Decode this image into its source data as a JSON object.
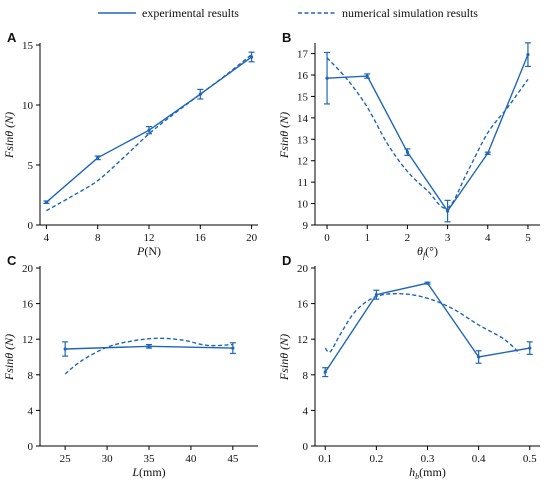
{
  "colors": {
    "series": "#1f66b8",
    "axis": "#000000"
  },
  "legend": {
    "placement": "top-center",
    "items": [
      {
        "label": "experimental results",
        "style": "solid"
      },
      {
        "label": "numerical simulation results",
        "style": "dashed"
      }
    ]
  },
  "chart_data": [
    {
      "panel": "A",
      "type": "line",
      "xlabel": {
        "main": "P",
        "sub": "",
        "unit": "(N)"
      },
      "ylabel": "Fsinθ (N)",
      "xlim": [
        3.5,
        20.5
      ],
      "ylim": [
        0,
        15
      ],
      "xticks": [
        4,
        8,
        12,
        16,
        20
      ],
      "yticks": [
        0,
        5,
        10,
        15
      ],
      "series": [
        {
          "name": "experimental results",
          "style": "solid",
          "x": [
            4,
            8,
            12,
            16,
            20
          ],
          "y": [
            1.9,
            5.6,
            7.9,
            10.9,
            14.0
          ],
          "err": [
            0.1,
            0.15,
            0.3,
            0.4,
            0.4
          ]
        },
        {
          "name": "numerical simulation results",
          "style": "dashed",
          "x": [
            4,
            6,
            8,
            10,
            12,
            14,
            16,
            18,
            20
          ],
          "y": [
            1.2,
            2.4,
            3.7,
            5.6,
            7.6,
            9.3,
            10.9,
            12.5,
            14.2
          ]
        }
      ]
    },
    {
      "panel": "B",
      "type": "line",
      "xlabel": {
        "main": "θ",
        "sub": "f",
        "unit": "(°)"
      },
      "ylabel": "Fsinθ (N)",
      "xlim": [
        -0.3,
        5.3
      ],
      "ylim": [
        9,
        17.4
      ],
      "xticks": [
        0,
        1,
        2,
        3,
        4,
        5
      ],
      "yticks": [
        9,
        10,
        11,
        12,
        13,
        14,
        15,
        16,
        17
      ],
      "series": [
        {
          "name": "experimental results",
          "style": "solid",
          "x": [
            0,
            1,
            2,
            3,
            4,
            5
          ],
          "y": [
            15.85,
            15.95,
            12.4,
            9.65,
            12.35,
            16.95
          ],
          "err": [
            1.2,
            0.1,
            0.15,
            0.5,
            0.05,
            0.55
          ]
        },
        {
          "name": "numerical simulation results",
          "style": "dashed",
          "x": [
            0,
            0.5,
            1,
            1.5,
            2,
            2.5,
            3,
            3.5,
            4,
            4.5,
            5
          ],
          "y": [
            16.8,
            15.8,
            14.5,
            12.8,
            11.5,
            10.6,
            9.8,
            11.5,
            13.3,
            14.5,
            15.8
          ]
        }
      ]
    },
    {
      "panel": "C",
      "type": "line",
      "xlabel": {
        "main": "L",
        "sub": "",
        "unit": "(mm)"
      },
      "ylabel": "Fsinθ (N)",
      "xlim": [
        22,
        48
      ],
      "ylim": [
        0,
        20
      ],
      "xticks": [
        25,
        30,
        35,
        40,
        45
      ],
      "yticks": [
        0,
        4,
        8,
        12,
        16,
        20
      ],
      "series": [
        {
          "name": "experimental results",
          "style": "solid",
          "x": [
            25,
            35,
            45
          ],
          "y": [
            10.9,
            11.2,
            11.0
          ],
          "err": [
            0.8,
            0.2,
            0.6
          ]
        },
        {
          "name": "numerical simulation results",
          "style": "dashed",
          "x": [
            25,
            27,
            30,
            33,
            36,
            39,
            42,
            45
          ],
          "y": [
            8.1,
            9.6,
            11.1,
            11.8,
            12.1,
            11.9,
            11.3,
            11.4
          ]
        }
      ]
    },
    {
      "panel": "D",
      "type": "line",
      "xlabel": {
        "main": "h",
        "sub": "b",
        "unit": "(mm)"
      },
      "ylabel": "Fsinθ (N)",
      "xlim": [
        0.08,
        0.52
      ],
      "ylim": [
        0,
        20
      ],
      "xticks": [
        0.1,
        0.2,
        0.3,
        0.4,
        0.5
      ],
      "yticks": [
        0,
        4,
        8,
        12,
        16,
        20
      ],
      "series": [
        {
          "name": "experimental results",
          "style": "solid",
          "x": [
            0.1,
            0.2,
            0.3,
            0.4,
            0.5
          ],
          "y": [
            8.3,
            17.0,
            18.3,
            10.0,
            11.0
          ],
          "err": [
            0.5,
            0.5,
            0.1,
            0.7,
            0.7
          ]
        },
        {
          "name": "numerical simulation results",
          "style": "dashed",
          "x": [
            0.1,
            0.11,
            0.13,
            0.16,
            0.2,
            0.25,
            0.3,
            0.35,
            0.4,
            0.45,
            0.48
          ],
          "y": [
            11.0,
            10.6,
            12.6,
            15.2,
            16.8,
            17.1,
            16.6,
            15.4,
            13.6,
            12.0,
            10.4
          ]
        }
      ]
    }
  ]
}
